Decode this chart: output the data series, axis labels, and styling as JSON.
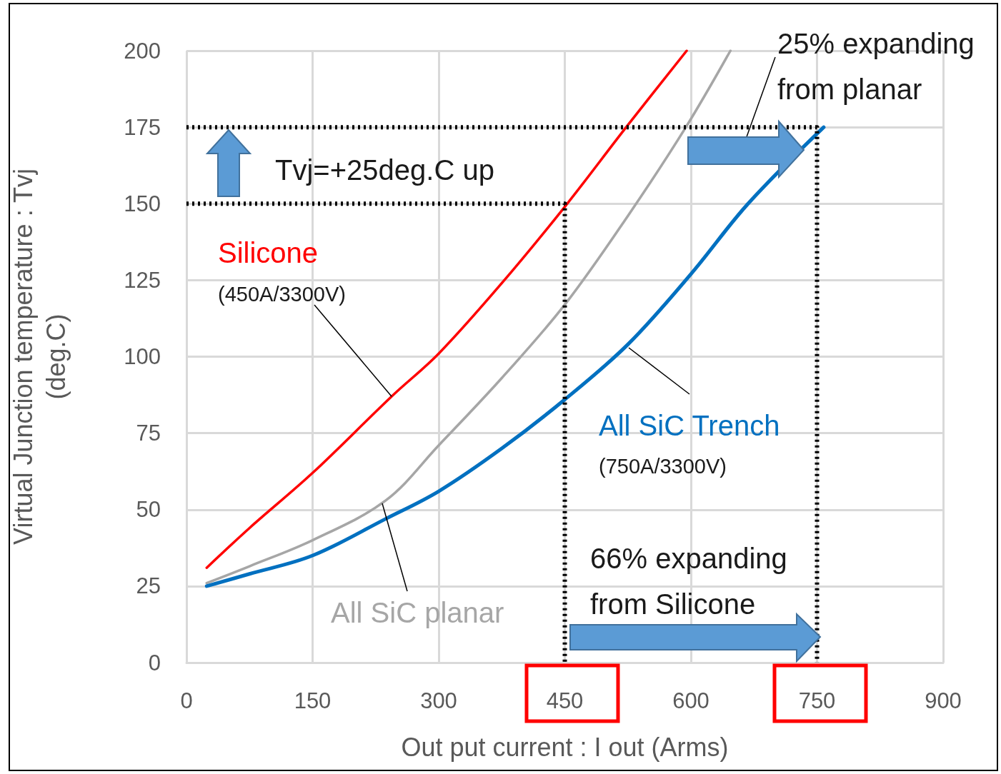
{
  "chart_data": {
    "type": "line",
    "xlabel": "Out put current : I out (Arms)",
    "ylabel": "Virtual Junction temperature : Tvj\n(deg.C)",
    "xlim": [
      0,
      900
    ],
    "xticks": [
      0,
      150,
      300,
      450,
      600,
      750,
      900
    ],
    "ylim": [
      0,
      200
    ],
    "yticks": [
      0,
      25,
      50,
      75,
      100,
      125,
      150,
      175,
      200
    ],
    "grid": true,
    "series": [
      {
        "name": "Silicone",
        "color": "#ff0000",
        "x": [
          24,
          75,
          150,
          244,
          300,
          375,
          450,
          523,
          595
        ],
        "values": [
          31,
          44,
          62,
          87,
          101,
          124,
          149,
          175,
          200
        ]
      },
      {
        "name": "All SiC planar",
        "color": "#a6a6a6",
        "x": [
          24,
          75,
          150,
          237,
          300,
          375,
          450,
          525,
          594,
          647
        ],
        "values": [
          26,
          31.5,
          40,
          53,
          71,
          93,
          117,
          146,
          175,
          200
        ]
      },
      {
        "name": "All SiC Trench",
        "color": "#0070c0",
        "x": [
          24,
          75,
          150,
          237,
          300,
          375,
          450,
          525,
          600,
          668,
          758
        ],
        "values": [
          25,
          29,
          35,
          47,
          56,
          70,
          86,
          104,
          127,
          150,
          175
        ]
      },
      {
        "color": "#000000",
        "line_style": "dotted",
        "x": [
          0,
          750,
          750
        ],
        "values": [
          175,
          175,
          0
        ]
      },
      {
        "color": "#000000",
        "line_style": "dotted",
        "x": [
          0,
          450,
          450
        ],
        "values": [
          150,
          150,
          0
        ]
      }
    ],
    "annotations": [
      "Tvj=+25deg.C up",
      {
        "text": "(450A/3300V)",
        "x": 244,
        "y": 87
      },
      "(750A/3300V)",
      "25% expanding\nfrom planar",
      "66% expanding\nfrom Silicone"
    ]
  }
}
